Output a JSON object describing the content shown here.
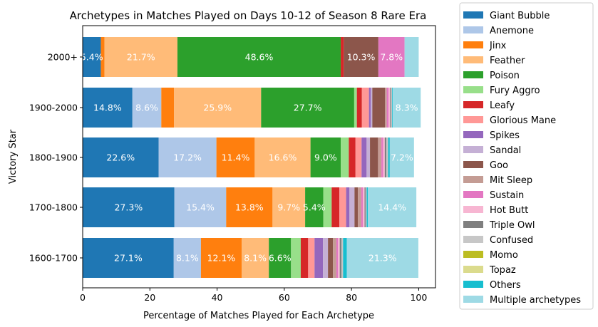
{
  "chart_data": {
    "type": "bar",
    "orientation": "horizontal",
    "stacked": true,
    "title": "Archetypes in Matches Played on Days 10-12 of Season 8 Rare Era",
    "xlabel": "Percentage of Matches Played for Each Archetype",
    "ylabel": "Victory Star",
    "xlim": [
      0,
      105
    ],
    "xticks": [
      0,
      20,
      40,
      60,
      80,
      100
    ],
    "grid": false,
    "legend_position": "outside-right",
    "categories": [
      "2000+",
      "1900-2000",
      "1800-1900",
      "1700-1800",
      "1600-1700"
    ],
    "series": [
      {
        "name": "Giant Bubble",
        "color": "#1f77b4",
        "values": [
          5.4,
          14.8,
          22.6,
          27.3,
          27.1
        ],
        "labels": [
          "5.4%",
          "14.8%",
          "22.6%",
          "27.3%",
          "27.1%"
        ]
      },
      {
        "name": "Anemone",
        "color": "#aec7e8",
        "values": [
          0,
          8.6,
          17.2,
          15.4,
          8.1
        ],
        "labels": [
          "",
          "8.6%",
          "17.2%",
          "15.4%",
          "8.1%"
        ]
      },
      {
        "name": "Jinx",
        "color": "#ff7f0e",
        "values": [
          1.1,
          3.8,
          11.4,
          13.8,
          12.1
        ],
        "labels": [
          "",
          "",
          "11.4%",
          "13.8%",
          "12.1%"
        ]
      },
      {
        "name": "Feather",
        "color": "#ffbb78",
        "values": [
          21.7,
          25.9,
          16.6,
          9.7,
          8.1
        ],
        "labels": [
          "21.7%",
          "25.9%",
          "16.6%",
          "9.7%",
          "8.1%"
        ]
      },
      {
        "name": "Poison",
        "color": "#2ca02c",
        "values": [
          48.6,
          27.7,
          9.0,
          5.4,
          6.6
        ],
        "labels": [
          "48.6%",
          "27.7%",
          "9.0%",
          "5.4%",
          "6.6%"
        ]
      },
      {
        "name": "Fury Aggro",
        "color": "#98df8a",
        "values": [
          0,
          0.8,
          2.4,
          2.5,
          2.9
        ],
        "labels": [
          "",
          "",
          "",
          "",
          ""
        ]
      },
      {
        "name": "Leafy",
        "color": "#d62728",
        "values": [
          0.9,
          1.5,
          2.0,
          2.3,
          2.2
        ],
        "labels": [
          "",
          "",
          "",
          "",
          ""
        ]
      },
      {
        "name": "Glorious Mane",
        "color": "#ff9896",
        "values": [
          0,
          2.1,
          1.8,
          2.0,
          1.9
        ],
        "labels": [
          "",
          "",
          "",
          "",
          ""
        ]
      },
      {
        "name": "Spikes",
        "color": "#9467bd",
        "values": [
          0,
          0.5,
          1.5,
          1.0,
          2.5
        ],
        "labels": [
          "",
          "",
          "",
          "",
          ""
        ]
      },
      {
        "name": "Sandal",
        "color": "#c5b0d5",
        "values": [
          0,
          0.5,
          1.0,
          1.5,
          1.5
        ],
        "labels": [
          "",
          "",
          "",
          "",
          ""
        ]
      },
      {
        "name": "Goo",
        "color": "#8c564b",
        "values": [
          10.3,
          3.8,
          2.4,
          1.0,
          1.5
        ],
        "labels": [
          "10.3%",
          "",
          "",
          "",
          ""
        ]
      },
      {
        "name": "Mit Sleep",
        "color": "#c49c94",
        "values": [
          0,
          0.5,
          1.0,
          1.0,
          1.0
        ],
        "labels": [
          "",
          "",
          "",
          "",
          ""
        ]
      },
      {
        "name": "Sustain",
        "color": "#e377c2",
        "values": [
          7.8,
          0.5,
          0.5,
          0.5,
          0.5
        ],
        "labels": [
          "7.8%",
          "",
          "",
          "",
          ""
        ]
      },
      {
        "name": "Hot Butt",
        "color": "#f7b6d2",
        "values": [
          0,
          0.5,
          0.5,
          0.5,
          0.5
        ],
        "labels": [
          "",
          "",
          "",
          "",
          ""
        ]
      },
      {
        "name": "Triple Owl",
        "color": "#7f7f7f",
        "values": [
          0,
          0.3,
          0.5,
          0.3,
          0.5
        ],
        "labels": [
          "",
          "",
          "",
          "",
          ""
        ]
      },
      {
        "name": "Confused",
        "color": "#c7c7c7",
        "values": [
          0,
          0.3,
          0.5,
          0.3,
          0.5
        ],
        "labels": [
          "",
          "",
          "",
          "",
          ""
        ]
      },
      {
        "name": "Momo",
        "color": "#bcbd22",
        "values": [
          0,
          0,
          0,
          0,
          0
        ],
        "labels": [
          "",
          "",
          "",
          "",
          ""
        ]
      },
      {
        "name": "Topaz",
        "color": "#dbdb8d",
        "values": [
          0,
          0,
          0,
          0,
          0
        ],
        "labels": [
          "",
          "",
          "",
          "",
          ""
        ]
      },
      {
        "name": "Others",
        "color": "#17becf",
        "values": [
          0,
          0.2,
          0.5,
          0.4,
          1.1
        ],
        "labels": [
          "",
          "",
          "",
          "",
          ""
        ]
      },
      {
        "name": "Multiple archetypes",
        "color": "#9edae5",
        "values": [
          4.2,
          8.3,
          7.2,
          14.4,
          21.3
        ],
        "labels": [
          "",
          "8.3%",
          "7.2%",
          "14.4%",
          "21.3%"
        ]
      }
    ]
  }
}
